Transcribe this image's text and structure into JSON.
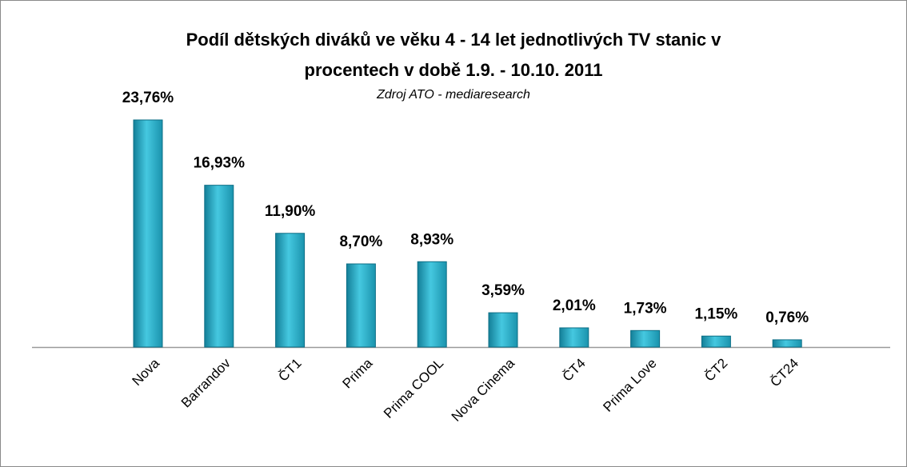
{
  "chart_data": {
    "type": "bar",
    "title": [
      "Podíl dětských diváků  ve věku 4 - 14 let jednotlivých TV stanic v",
      "procentech v době 1.9. - 10.10. 2011"
    ],
    "subtitle": "Zdroj ATO - mediaresearch",
    "categories": [
      "Nova",
      "Barrandov",
      "ČT1",
      "Prima",
      "Prima COOL",
      "Nova Cinema",
      "ČT4",
      "Prima Love",
      "ČT2",
      "ČT24"
    ],
    "values": [
      23.76,
      16.93,
      11.9,
      8.7,
      8.93,
      3.59,
      2.01,
      1.73,
      1.15,
      0.76
    ],
    "value_labels": [
      "23,76%",
      "16,93%",
      "11,90%",
      "8,70%",
      "8,93%",
      "3,59%",
      "2,01%",
      "1,73%",
      "1,15%",
      "0,76%"
    ],
    "color": "#2bb3cf"
  }
}
